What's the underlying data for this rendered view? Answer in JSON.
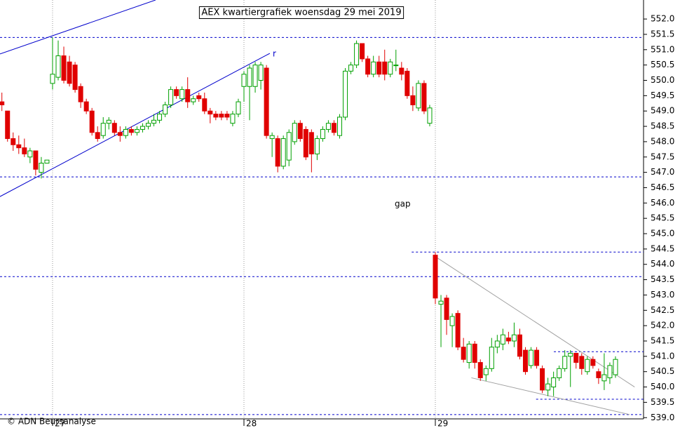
{
  "chart_data": {
    "type": "candlestick",
    "title": "AEX kwartiergrafiek woensdag 29 mei 2019",
    "credit": "© ADN Beursanalyse",
    "annotations": [
      "gap",
      "r"
    ],
    "up_color": "#00a000",
    "down_color": "#e00000",
    "categories": [
      null,
      null,
      null,
      null,
      null,
      null,
      null,
      null,
      null,
      "27",
      null,
      null,
      null,
      null,
      null,
      null,
      null,
      null,
      null,
      null,
      null,
      null,
      null,
      null,
      null,
      null,
      null,
      null,
      null,
      null,
      null,
      null,
      null,
      null,
      null,
      null,
      null,
      null,
      null,
      null,
      null,
      null,
      null,
      "28",
      null,
      null,
      null,
      null,
      null,
      null,
      null,
      null,
      null,
      null,
      null,
      null,
      null,
      null,
      null,
      null,
      null,
      null,
      null,
      null,
      null,
      null,
      null,
      null,
      null,
      null,
      null,
      null,
      null,
      null,
      null,
      null,
      null,
      "29",
      null,
      null,
      null,
      null,
      null,
      null,
      null,
      null,
      null,
      null,
      null,
      null,
      null,
      null,
      null,
      null,
      null,
      null,
      null,
      null,
      null,
      null,
      null,
      null,
      null,
      null,
      null,
      null,
      null,
      null,
      null,
      null
    ],
    "open": [
      549.3,
      549.0,
      548.1,
      547.9,
      547.8,
      547.5,
      547.7,
      547.0,
      547.3,
      549.9,
      550.1,
      550.8,
      550.6,
      550.5,
      549.8,
      549.3,
      549.0,
      548.3,
      548.2,
      548.6,
      548.6,
      548.3,
      548.2,
      548.4,
      548.3,
      548.4,
      548.5,
      548.6,
      548.7,
      548.9,
      549.2,
      549.7,
      549.4,
      549.7,
      549.3,
      549.5,
      549.4,
      549.0,
      548.9,
      548.9,
      548.9,
      548.6,
      548.9,
      549.8,
      549.8,
      549.8,
      550.0,
      550.4,
      548.1,
      548.1,
      547.2,
      547.4,
      548.0,
      548.6,
      548.4,
      548.3,
      547.6,
      548.1,
      548.4,
      548.6,
      548.2,
      548.8,
      550.3,
      550.5,
      551.2,
      550.7,
      550.2,
      550.6,
      550.6,
      550.2,
      550.5,
      550.4,
      550.3,
      549.5,
      549.1,
      549.9,
      548.6,
      544.3,
      542.7,
      542.9,
      542.0,
      542.4,
      541.3,
      540.8,
      541.4,
      540.8,
      540.4,
      540.6,
      541.3,
      541.4,
      541.6,
      541.5,
      541.7,
      541.2,
      540.7,
      541.2,
      540.6,
      539.9,
      540.0,
      540.3,
      540.6,
      541.0,
      541.1,
      541.0,
      540.5,
      540.9,
      540.5,
      540.2,
      540.3,
      540.4
    ],
    "high": [
      549.6,
      549.0,
      548.3,
      548.2,
      548.1,
      547.8,
      547.7,
      547.5,
      547.4,
      551.4,
      551.3,
      551.1,
      550.8,
      550.6,
      549.9,
      549.4,
      549.1,
      548.5,
      548.8,
      548.8,
      548.7,
      548.5,
      548.5,
      548.5,
      548.5,
      548.6,
      548.7,
      548.9,
      549.0,
      549.3,
      549.8,
      549.8,
      549.8,
      550.1,
      549.5,
      549.6,
      549.6,
      549.1,
      549.0,
      549.0,
      549.0,
      549.0,
      549.4,
      550.3,
      550.5,
      550.6,
      550.6,
      550.5,
      548.3,
      548.2,
      548.2,
      548.4,
      548.7,
      548.7,
      548.5,
      548.4,
      548.2,
      548.5,
      548.7,
      548.7,
      548.9,
      550.4,
      550.6,
      551.3,
      551.2,
      550.8,
      550.8,
      550.8,
      551.0,
      550.7,
      551.0,
      550.6,
      550.4,
      549.8,
      550.0,
      550.0,
      549.2,
      544.4,
      543.0,
      543.0,
      542.4,
      542.5,
      541.6,
      541.5,
      541.5,
      540.9,
      540.7,
      541.6,
      541.7,
      541.9,
      541.8,
      542.1,
      541.9,
      541.3,
      541.3,
      541.3,
      540.7,
      540.3,
      540.5,
      540.7,
      541.2,
      541.2,
      541.1,
      541.1,
      541.0,
      541.0,
      540.6,
      541.1,
      540.8,
      541.0
    ],
    "low": [
      549.0,
      548.0,
      547.7,
      547.6,
      547.5,
      547.3,
      546.9,
      546.8,
      547.3,
      549.7,
      550.0,
      549.9,
      549.8,
      549.6,
      549.1,
      548.9,
      548.2,
      548.0,
      548.1,
      548.4,
      548.2,
      548.0,
      548.1,
      548.2,
      548.2,
      548.3,
      548.4,
      548.5,
      548.6,
      548.8,
      549.1,
      549.4,
      549.3,
      549.1,
      549.2,
      549.3,
      548.9,
      548.6,
      548.7,
      548.7,
      548.7,
      548.5,
      548.8,
      549.3,
      548.7,
      549.6,
      549.7,
      548.1,
      547.5,
      547.0,
      547.1,
      547.2,
      547.9,
      548.0,
      547.4,
      547.0,
      547.4,
      548.0,
      548.3,
      548.2,
      548.1,
      548.7,
      550.2,
      550.4,
      550.6,
      550.1,
      550.1,
      550.1,
      550.0,
      550.1,
      550.3,
      550.0,
      549.4,
      549.0,
      549.0,
      548.9,
      548.5,
      542.7,
      541.3,
      541.7,
      541.3,
      541.2,
      540.8,
      540.6,
      540.6,
      540.2,
      540.2,
      540.5,
      541.1,
      541.2,
      541.4,
      541.3,
      540.9,
      540.4,
      540.6,
      540.6,
      539.8,
      539.7,
      539.7,
      540.2,
      540.5,
      540.0,
      540.6,
      540.4,
      540.4,
      540.6,
      540.1,
      539.9,
      540.1,
      540.3
    ],
    "close": [
      549.2,
      548.1,
      547.9,
      547.8,
      547.6,
      547.7,
      547.1,
      547.3,
      547.4,
      550.2,
      550.8,
      550.0,
      549.9,
      549.7,
      549.3,
      549.0,
      548.3,
      548.1,
      548.6,
      548.7,
      548.3,
      548.2,
      548.4,
      548.3,
      548.4,
      548.5,
      548.6,
      548.7,
      548.9,
      549.2,
      549.7,
      549.5,
      549.7,
      549.3,
      549.4,
      549.4,
      549.0,
      548.9,
      548.8,
      548.8,
      548.8,
      548.9,
      549.3,
      550.2,
      550.4,
      550.5,
      550.5,
      548.2,
      548.2,
      547.2,
      548.1,
      548.3,
      548.6,
      548.1,
      547.5,
      547.6,
      548.1,
      548.4,
      548.6,
      548.3,
      548.8,
      550.3,
      550.5,
      551.2,
      550.7,
      550.2,
      550.6,
      550.2,
      550.2,
      550.6,
      550.5,
      550.2,
      549.5,
      549.2,
      549.9,
      549.0,
      549.1,
      542.9,
      542.8,
      542.2,
      542.3,
      541.3,
      540.9,
      541.4,
      540.8,
      540.3,
      540.6,
      541.3,
      541.5,
      541.7,
      541.5,
      541.7,
      541.0,
      540.5,
      541.2,
      540.7,
      539.9,
      540.1,
      540.3,
      540.6,
      541.0,
      541.1,
      540.8,
      540.6,
      540.9,
      540.7,
      540.3,
      540.4,
      540.7,
      540.9
    ],
    "ylim": [
      538.96,
      552.62
    ],
    "yticks": [
      {
        "value": 539,
        "label": "539.0"
      },
      539.5,
      {
        "value": 540,
        "label": "540.0"
      },
      540.5,
      {
        "value": 541,
        "label": "541.0"
      },
      541.5,
      {
        "value": 542,
        "label": "542.0"
      },
      542.5,
      {
        "value": 543,
        "label": "543.0"
      },
      543.5,
      {
        "value": 544,
        "label": "544.0"
      },
      544.5,
      {
        "value": 545,
        "label": "545.0"
      },
      545.5,
      {
        "value": 546,
        "label": "546.0"
      },
      546.5,
      {
        "value": 547,
        "label": "547.0"
      },
      547.5,
      {
        "value": 548,
        "label": "548.0"
      },
      548.5,
      {
        "value": 549,
        "label": "549.0"
      },
      549.5,
      {
        "value": 550,
        "label": "550.0"
      },
      550.5,
      {
        "value": 551,
        "label": "551.0"
      },
      551.5,
      {
        "value": 552,
        "label": "552.0"
      }
    ],
    "reference_lines": [
      {
        "value": 551.4,
        "color": "#0000cc"
      },
      {
        "value": 546.85,
        "color": "#0000cc"
      },
      {
        "value": 544.4,
        "from": 72.8,
        "color": "#0000cc"
      },
      {
        "value": 543.6,
        "color": "#0000cc"
      },
      {
        "value": 541.15,
        "from": 98.05,
        "color": "#0000cc"
      },
      {
        "value": 539.6,
        "from": 94.9,
        "color": "#0000cc"
      },
      {
        "value": 539.1,
        "color": "#0000cc"
      }
    ],
    "trend_lines": [
      {
        "x": [
          -0.34,
          27.3
        ],
        "y": [
          550.86,
          552.62
        ],
        "color": "#0000cc"
      },
      {
        "x": [
          -0.34,
          47.6
        ],
        "y": [
          546.21,
          550.88
        ],
        "color": "#0000cc"
      },
      {
        "x": [
          76.6,
          112.4
        ],
        "y": [
          544.3,
          540.0
        ],
        "color": "#a0a0a0"
      },
      {
        "x": [
          83.4,
          111.5
        ],
        "y": [
          540.3,
          539.1
        ],
        "color": "#a0a0a0"
      }
    ]
  }
}
